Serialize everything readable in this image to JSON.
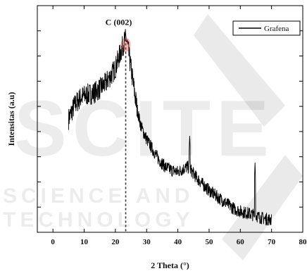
{
  "chart_data": {
    "type": "line",
    "xlabel": "2 Theta (°)",
    "ylabel": "Intensitas (a.u)",
    "xlim": [
      -5,
      80
    ],
    "x_ticks": [
      0,
      10,
      20,
      30,
      40,
      50,
      60,
      70,
      80
    ],
    "y_ticks_labeled": false,
    "legend": {
      "placement": "top-right",
      "entries": [
        "Grafena"
      ]
    },
    "annotation": {
      "text": "C (002)",
      "x": 23.3
    },
    "series": [
      {
        "name": "Grafena",
        "color": "#000000",
        "x": [
          5,
          7,
          9,
          11,
          13,
          15,
          17,
          18,
          19,
          20,
          21,
          22,
          23,
          23.5,
          24,
          25,
          26,
          27,
          28,
          29,
          30,
          32,
          34,
          36,
          38,
          40,
          42,
          43,
          44,
          45,
          46,
          48,
          50,
          52,
          55,
          58,
          60,
          62,
          64,
          64.5,
          65,
          66,
          68,
          70
        ],
        "y": [
          13.5,
          15.2,
          16.1,
          16.4,
          16.6,
          17.1,
          17.8,
          18.4,
          18.9,
          19.6,
          20.7,
          21.8,
          22.9,
          23.1,
          22.0,
          19.5,
          17.0,
          14.6,
          12.9,
          11.9,
          11.1,
          9.8,
          8.6,
          7.8,
          7.4,
          7.2,
          7.6,
          7.8,
          7.5,
          7.0,
          6.5,
          5.7,
          5.0,
          4.4,
          3.6,
          2.8,
          2.5,
          2.3,
          2.1,
          2.0,
          2.0,
          1.8,
          1.6,
          1.5
        ],
        "sharp_peaks": [
          {
            "x": 43.8,
            "y": 11.7
          },
          {
            "x": 64.7,
            "y": 8.4
          }
        ]
      }
    ]
  },
  "watermark": {
    "main": "SCITE",
    "sub": "SCIENCE AND TECHNOLOGY"
  }
}
